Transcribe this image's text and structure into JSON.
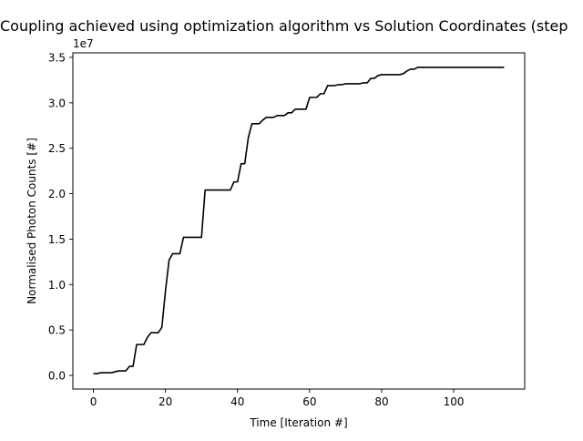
{
  "chart_data": {
    "type": "line",
    "title": "Coupling achieved using optimization algorithm vs Solution Coordinates (step",
    "xlabel": "Time [Iteration #]",
    "ylabel": "Normalised Photon Counts [#]",
    "y_offset_label": "1e7",
    "xlim": [
      -5.7,
      119.7
    ],
    "ylim": [
      -0.15,
      3.55
    ],
    "x_ticks": [
      0,
      20,
      40,
      60,
      80,
      100
    ],
    "y_ticks": [
      0.0,
      0.5,
      1.0,
      1.5,
      2.0,
      2.5,
      3.0,
      3.5
    ],
    "y_tick_labels": [
      "0.0",
      "0.5",
      "1.0",
      "1.5",
      "2.0",
      "2.5",
      "3.0",
      "3.5"
    ],
    "grid": false,
    "legend": "none",
    "series": [
      {
        "color": "#000000",
        "x": [
          0,
          1,
          2,
          3,
          4,
          5,
          6,
          7,
          8,
          9,
          10,
          11,
          12,
          13,
          14,
          15,
          16,
          17,
          18,
          19,
          20,
          21,
          22,
          23,
          24,
          25,
          26,
          27,
          28,
          29,
          30,
          31,
          32,
          33,
          34,
          35,
          36,
          37,
          38,
          39,
          40,
          41,
          42,
          43,
          44,
          45,
          46,
          47,
          48,
          49,
          50,
          51,
          52,
          53,
          54,
          55,
          56,
          57,
          58,
          59,
          60,
          61,
          62,
          63,
          64,
          65,
          66,
          67,
          68,
          69,
          70,
          71,
          72,
          73,
          74,
          75,
          76,
          77,
          78,
          79,
          80,
          81,
          82,
          83,
          84,
          85,
          86,
          87,
          88,
          89,
          90,
          114
        ],
        "y": [
          0.02,
          0.02,
          0.03,
          0.03,
          0.03,
          0.03,
          0.04,
          0.05,
          0.05,
          0.05,
          0.1,
          0.1,
          0.34,
          0.34,
          0.34,
          0.42,
          0.47,
          0.47,
          0.47,
          0.53,
          0.93,
          1.27,
          1.34,
          1.34,
          1.34,
          1.52,
          1.52,
          1.52,
          1.52,
          1.52,
          1.52,
          2.04,
          2.04,
          2.04,
          2.04,
          2.04,
          2.04,
          2.04,
          2.04,
          2.13,
          2.13,
          2.33,
          2.33,
          2.62,
          2.77,
          2.77,
          2.77,
          2.81,
          2.84,
          2.84,
          2.84,
          2.86,
          2.86,
          2.86,
          2.89,
          2.89,
          2.93,
          2.93,
          2.93,
          2.93,
          3.06,
          3.06,
          3.06,
          3.1,
          3.1,
          3.19,
          3.19,
          3.19,
          3.2,
          3.2,
          3.21,
          3.21,
          3.21,
          3.21,
          3.21,
          3.22,
          3.22,
          3.27,
          3.27,
          3.3,
          3.31,
          3.31,
          3.31,
          3.31,
          3.31,
          3.31,
          3.32,
          3.35,
          3.37,
          3.37,
          3.39,
          3.39
        ]
      }
    ]
  }
}
